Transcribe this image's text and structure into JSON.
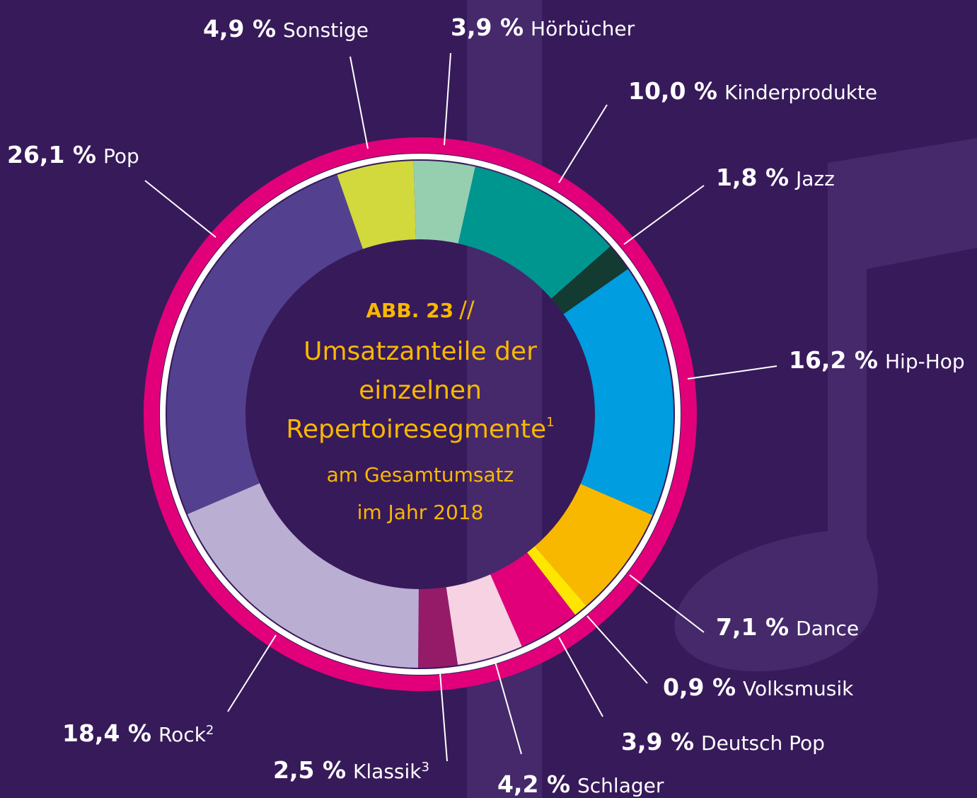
{
  "chart_data": {
    "type": "donut",
    "figure_label": "ABB. 23",
    "figure_separator": "//",
    "title_lines": [
      "Umsatzanteile der",
      "einzelnen",
      "Repertoiresegmente"
    ],
    "title_note": "1",
    "subtitle_lines": [
      "am Gesamtumsatz",
      "im Jahr 2018"
    ],
    "categories": [
      "Hörbücher",
      "Kinderprodukte",
      "Jazz",
      "Hip-Hop",
      "Dance",
      "Volksmusik",
      "Deutsch Pop",
      "Schlager",
      "Klassik",
      "Rock",
      "Pop",
      "Sonstige"
    ],
    "category_notes": [
      null,
      null,
      null,
      null,
      null,
      null,
      null,
      null,
      "3",
      "2",
      null,
      null
    ],
    "values": [
      3.9,
      10.0,
      1.8,
      16.2,
      7.1,
      0.9,
      3.9,
      4.2,
      2.5,
      18.4,
      26.1,
      4.9
    ],
    "value_labels": [
      "3,9 %",
      "10,0 %",
      "1,8 %",
      "16,2 %",
      "7,1 %",
      "0,9 %",
      "3,9 %",
      "4,2 %",
      "2,5 %",
      "18,4 %",
      "26,1 %",
      "4,9 %"
    ],
    "colors": [
      "#96cfb0",
      "#009690",
      "#143b31",
      "#009de0",
      "#f9b800",
      "#ffe600",
      "#e2007a",
      "#f6d2e2",
      "#951b68",
      "#bbaed3",
      "#53418f",
      "#d2d93d"
    ]
  }
}
